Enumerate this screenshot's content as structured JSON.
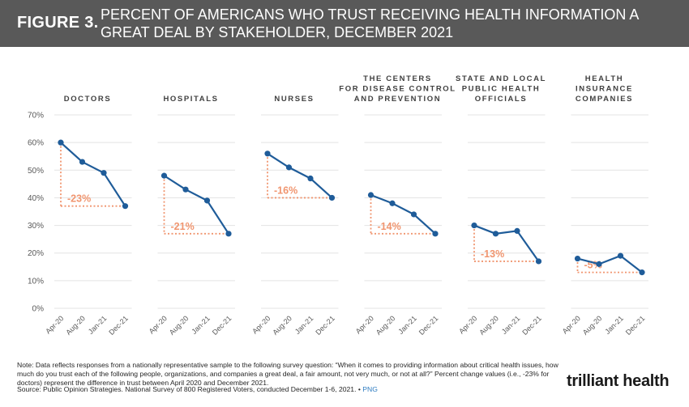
{
  "header": {
    "figure_label": "FIGURE 3.",
    "title": "PERCENT OF AMERICANS WHO TRUST RECEIVING HEALTH INFORMATION A GREAT DEAL BY STAKEHOLDER, DECEMBER 2021"
  },
  "colors": {
    "line": "#1f5c99",
    "marker": "#1f5c99",
    "annotation": "#f0956f",
    "grid": "#e3e3e3",
    "header_bg": "#595959"
  },
  "chart_data": {
    "type": "line",
    "title": "PERCENT OF AMERICANS WHO TRUST RECEIVING HEALTH INFORMATION A GREAT DEAL BY STAKEHOLDER, DECEMBER 2021",
    "categories": [
      "Apr-20",
      "Aug-20",
      "Jan-21",
      "Dec-21"
    ],
    "ylim": [
      0,
      70
    ],
    "yticks": [
      "0%",
      "10%",
      "20%",
      "30%",
      "40%",
      "50%",
      "60%",
      "70%"
    ],
    "ytick_values": [
      0,
      10,
      20,
      30,
      40,
      50,
      60,
      70
    ],
    "series": [
      {
        "name": "Doctors",
        "title_lines": [
          "DOCTORS"
        ],
        "values": [
          60,
          53,
          49,
          37
        ],
        "change_label": "-23%"
      },
      {
        "name": "Hospitals",
        "title_lines": [
          "HOSPITALS"
        ],
        "values": [
          48,
          43,
          39,
          27
        ],
        "change_label": "-21%"
      },
      {
        "name": "Nurses",
        "title_lines": [
          "NURSES"
        ],
        "values": [
          56,
          51,
          47,
          40
        ],
        "change_label": "-16%"
      },
      {
        "name": "The Centers for Disease Control and Prevention",
        "title_lines": [
          "THE CENTERS",
          "FOR DISEASE CONTROL",
          "AND PREVENTION"
        ],
        "values": [
          41,
          38,
          34,
          27
        ],
        "change_label": "-14%"
      },
      {
        "name": "State and Local Public Health Officials",
        "title_lines": [
          "STATE AND LOCAL",
          "PUBLIC HEALTH",
          "OFFICIALS"
        ],
        "values": [
          30,
          27,
          28,
          17
        ],
        "change_label": "-13%"
      },
      {
        "name": "Health Insurance Companies",
        "title_lines": [
          "HEALTH",
          "INSURANCE",
          "COMPANIES"
        ],
        "values": [
          18,
          16,
          19,
          13
        ],
        "change_label": "-5%"
      }
    ]
  },
  "footer": {
    "note": "Note: Data reflects responses from a nationally representative sample to the following survey question: “When it comes to providing information about critical health issues, how much do you trust each of the following people, organizations, and companies a great deal, a fair amount, not very much, or not at all?” Percent change values (i.e., -23% for doctors) represent the difference in trust between April 2020 and December 2021.",
    "source": "Source: Public Opinion Strategies. National Survey of 800 Registered Voters, conducted December 1-6, 2021. •",
    "png_link": "PNG",
    "logo": "trilliant health"
  }
}
